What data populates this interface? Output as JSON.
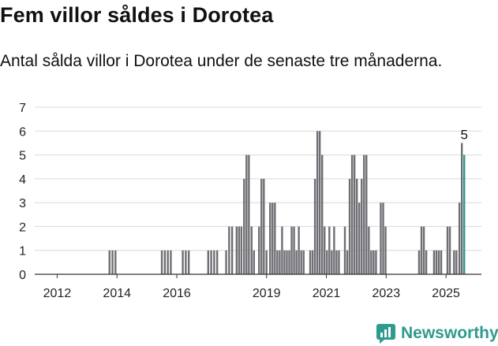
{
  "title": "Fem villor såldes i Dorotea",
  "subtitle": "Antal sålda villor i Dorotea under de senaste tre månaderna.",
  "brand": {
    "name": "Newsworthy",
    "icon": "newsworthy-logo-icon",
    "color": "#2f9a8f"
  },
  "chart_data": {
    "type": "bar",
    "bar_color": "#6f6e74",
    "highlight_color": "#2f9a8f",
    "ylim": [
      0,
      7
    ],
    "y_ticks": [
      "0",
      "1",
      "2",
      "3",
      "4",
      "5",
      "6",
      "7"
    ],
    "x_ticks": [
      "2012",
      "2014",
      "2016",
      "2019",
      "2021",
      "2023",
      "2025"
    ],
    "grid": true,
    "annotation": "5",
    "bars": [
      {
        "x": 2013.75,
        "value": 1
      },
      {
        "x": 2013.85,
        "value": 1
      },
      {
        "x": 2013.95,
        "value": 1
      },
      {
        "x": 2015.5,
        "value": 1
      },
      {
        "x": 2015.6,
        "value": 1
      },
      {
        "x": 2015.7,
        "value": 1
      },
      {
        "x": 2015.8,
        "value": 1
      },
      {
        "x": 2016.2,
        "value": 1
      },
      {
        "x": 2016.3,
        "value": 1
      },
      {
        "x": 2016.4,
        "value": 1
      },
      {
        "x": 2017.05,
        "value": 1
      },
      {
        "x": 2017.15,
        "value": 1
      },
      {
        "x": 2017.25,
        "value": 1
      },
      {
        "x": 2017.35,
        "value": 1
      },
      {
        "x": 2017.65,
        "value": 1
      },
      {
        "x": 2017.75,
        "value": 2
      },
      {
        "x": 2017.85,
        "value": 2
      },
      {
        "x": 2018.0,
        "value": 2
      },
      {
        "x": 2018.08,
        "value": 2
      },
      {
        "x": 2018.16,
        "value": 2
      },
      {
        "x": 2018.25,
        "value": 4
      },
      {
        "x": 2018.33,
        "value": 5
      },
      {
        "x": 2018.41,
        "value": 5
      },
      {
        "x": 2018.5,
        "value": 2
      },
      {
        "x": 2018.58,
        "value": 1
      },
      {
        "x": 2018.75,
        "value": 2
      },
      {
        "x": 2018.83,
        "value": 4
      },
      {
        "x": 2018.91,
        "value": 4
      },
      {
        "x": 2019.0,
        "value": 1
      },
      {
        "x": 2019.12,
        "value": 3
      },
      {
        "x": 2019.2,
        "value": 3
      },
      {
        "x": 2019.28,
        "value": 3
      },
      {
        "x": 2019.36,
        "value": 1
      },
      {
        "x": 2019.44,
        "value": 1
      },
      {
        "x": 2019.52,
        "value": 2
      },
      {
        "x": 2019.6,
        "value": 1
      },
      {
        "x": 2019.68,
        "value": 1
      },
      {
        "x": 2019.76,
        "value": 1
      },
      {
        "x": 2019.84,
        "value": 2
      },
      {
        "x": 2019.92,
        "value": 2
      },
      {
        "x": 2020.0,
        "value": 1
      },
      {
        "x": 2020.08,
        "value": 2
      },
      {
        "x": 2020.16,
        "value": 1
      },
      {
        "x": 2020.24,
        "value": 1
      },
      {
        "x": 2020.46,
        "value": 1
      },
      {
        "x": 2020.54,
        "value": 1
      },
      {
        "x": 2020.62,
        "value": 4
      },
      {
        "x": 2020.7,
        "value": 6
      },
      {
        "x": 2020.78,
        "value": 6
      },
      {
        "x": 2020.86,
        "value": 5
      },
      {
        "x": 2020.94,
        "value": 2
      },
      {
        "x": 2021.02,
        "value": 1
      },
      {
        "x": 2021.1,
        "value": 2
      },
      {
        "x": 2021.18,
        "value": 1
      },
      {
        "x": 2021.26,
        "value": 2
      },
      {
        "x": 2021.34,
        "value": 1
      },
      {
        "x": 2021.42,
        "value": 1
      },
      {
        "x": 2021.62,
        "value": 2
      },
      {
        "x": 2021.7,
        "value": 1
      },
      {
        "x": 2021.78,
        "value": 4
      },
      {
        "x": 2021.86,
        "value": 5
      },
      {
        "x": 2021.94,
        "value": 5
      },
      {
        "x": 2022.02,
        "value": 4
      },
      {
        "x": 2022.1,
        "value": 3
      },
      {
        "x": 2022.18,
        "value": 4
      },
      {
        "x": 2022.26,
        "value": 5
      },
      {
        "x": 2022.34,
        "value": 5
      },
      {
        "x": 2022.42,
        "value": 2
      },
      {
        "x": 2022.5,
        "value": 1
      },
      {
        "x": 2022.58,
        "value": 1
      },
      {
        "x": 2022.66,
        "value": 1
      },
      {
        "x": 2022.82,
        "value": 3
      },
      {
        "x": 2022.9,
        "value": 3
      },
      {
        "x": 2022.98,
        "value": 2
      },
      {
        "x": 2024.1,
        "value": 1
      },
      {
        "x": 2024.18,
        "value": 2
      },
      {
        "x": 2024.26,
        "value": 2
      },
      {
        "x": 2024.34,
        "value": 1
      },
      {
        "x": 2024.6,
        "value": 1
      },
      {
        "x": 2024.68,
        "value": 1
      },
      {
        "x": 2024.76,
        "value": 1
      },
      {
        "x": 2024.84,
        "value": 1
      },
      {
        "x": 2025.05,
        "value": 2
      },
      {
        "x": 2025.13,
        "value": 2
      },
      {
        "x": 2025.27,
        "value": 1
      },
      {
        "x": 2025.35,
        "value": 1
      },
      {
        "x": 2025.45,
        "value": 3
      },
      {
        "x": 2025.53,
        "value": 5.5
      },
      {
        "x": 2025.61,
        "value": 5,
        "highlight": true
      }
    ]
  }
}
